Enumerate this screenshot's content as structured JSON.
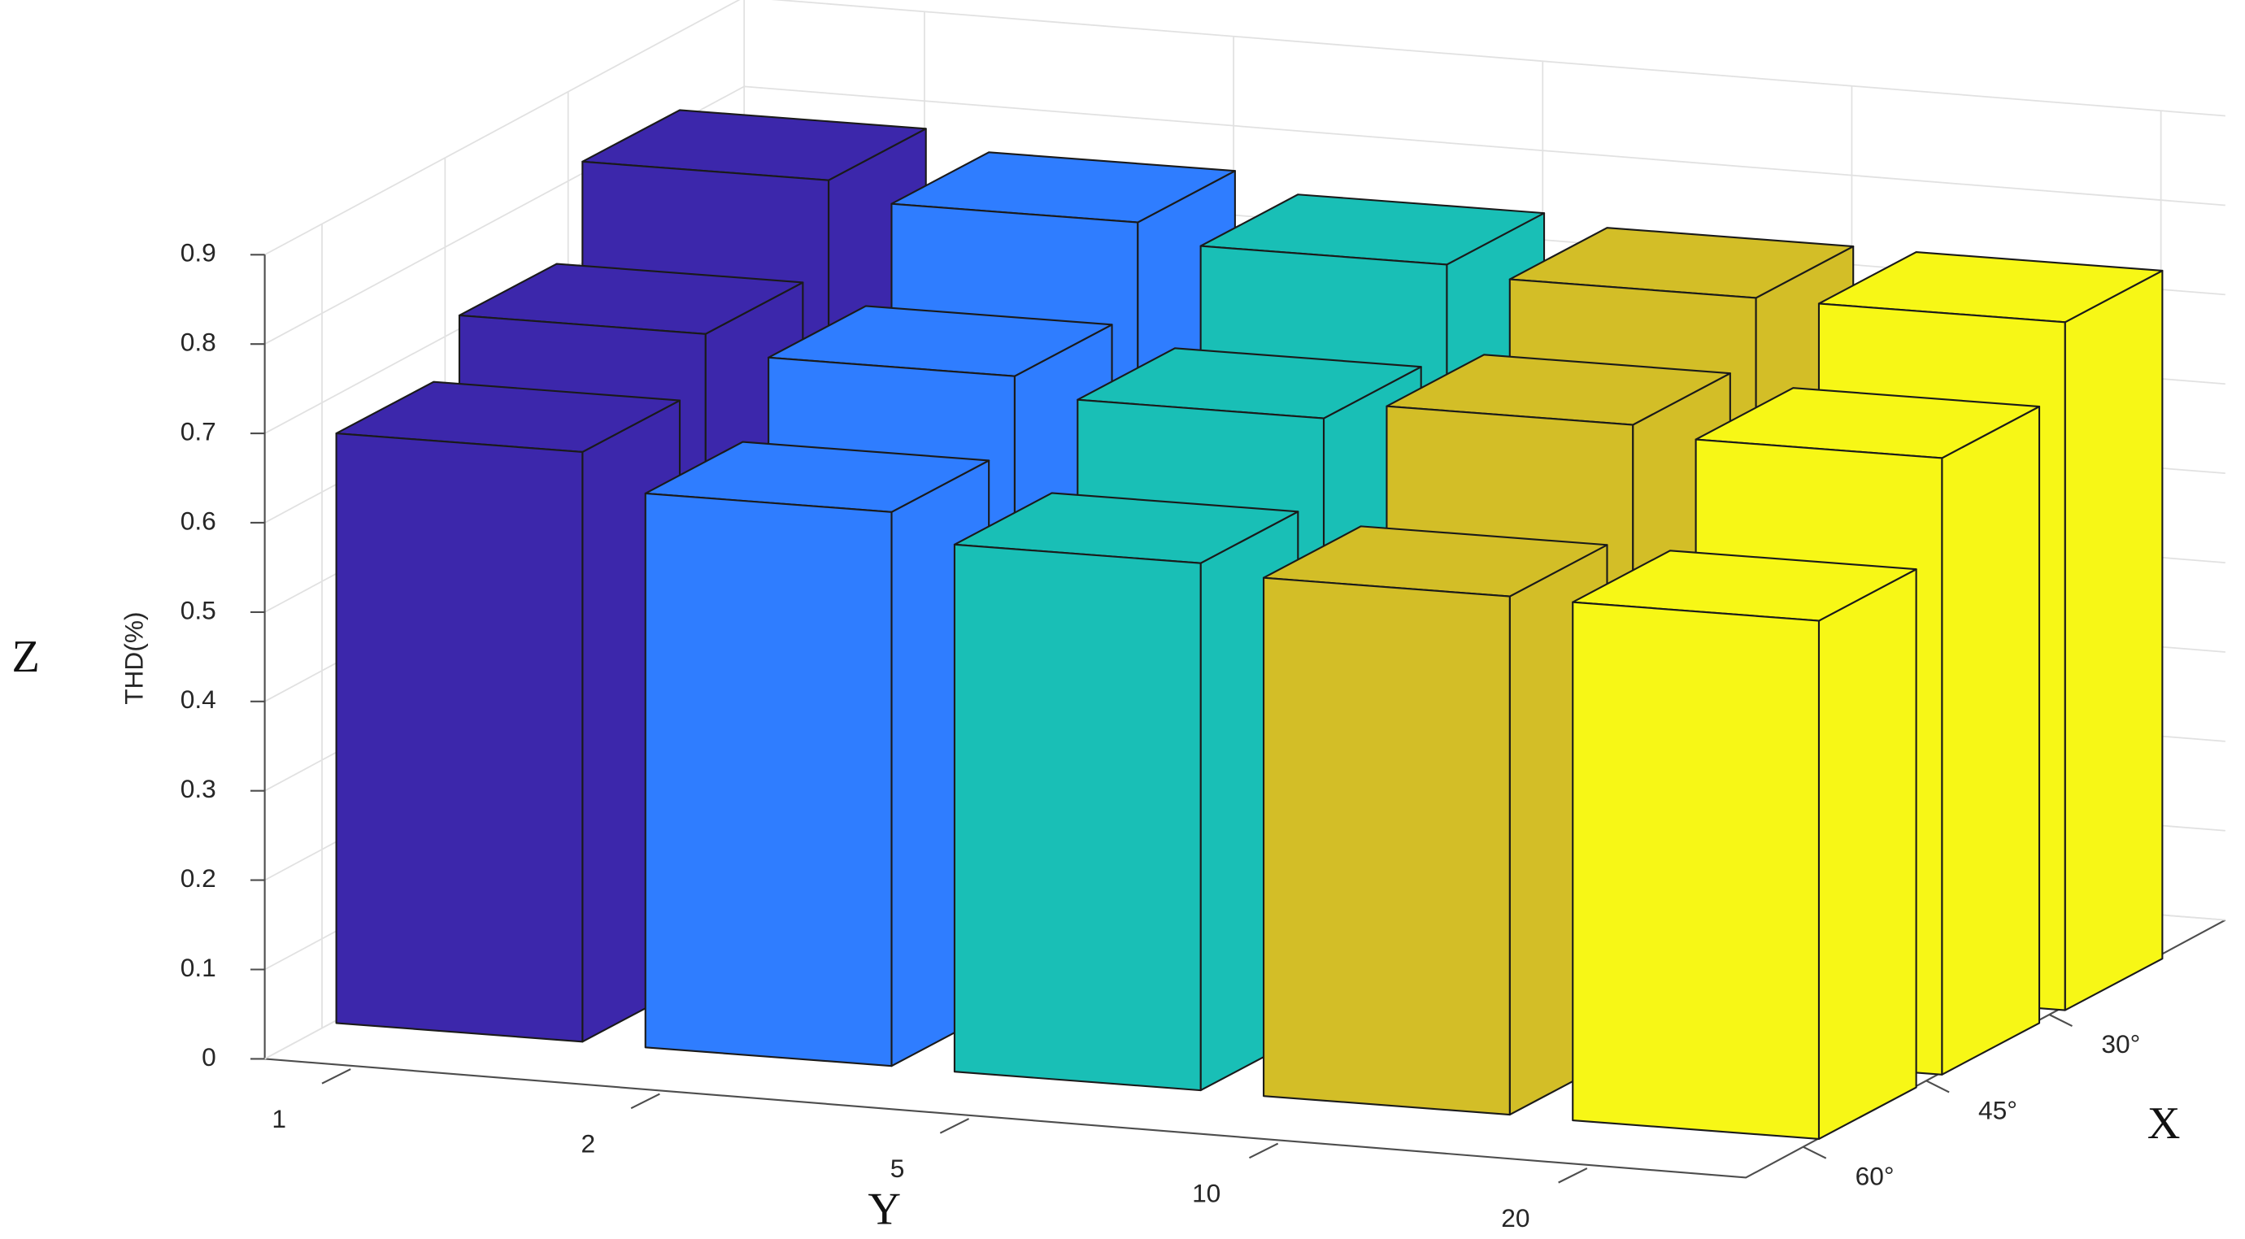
{
  "chart_data": {
    "type": "bar3d",
    "z_label": "THD(%)",
    "axis_letters": {
      "z": "Z",
      "y": "Y",
      "x": "X"
    },
    "y_categories": [
      "1",
      "2",
      "5",
      "10",
      "20"
    ],
    "x_categories": [
      "30°",
      "45°",
      "60°"
    ],
    "colors": [
      "#3c27ab",
      "#2f7dff",
      "#19bfb6",
      "#d3be27",
      "#f7f716"
    ],
    "values": [
      [
        0.82,
        0.8,
        0.78,
        0.77,
        0.77
      ],
      [
        0.72,
        0.7,
        0.68,
        0.7,
        0.69
      ],
      [
        0.66,
        0.62,
        0.59,
        0.58,
        0.58
      ]
    ],
    "zlim": [
      0,
      0.9
    ],
    "zticks": [
      0,
      0.1,
      0.2,
      0.3,
      0.4,
      0.5,
      0.6,
      0.7,
      0.8,
      0.9
    ],
    "grid": true
  }
}
